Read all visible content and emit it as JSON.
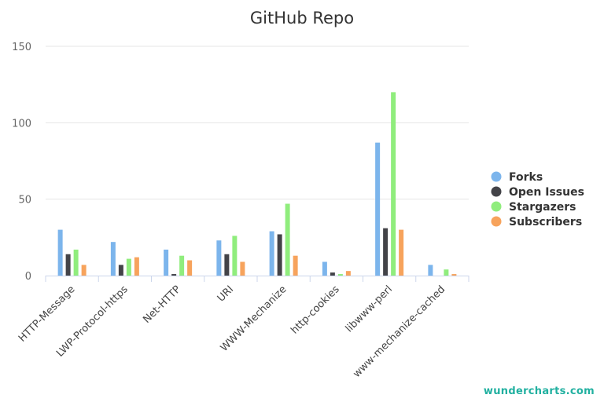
{
  "chart_data": {
    "type": "bar",
    "title": "GitHub Repo",
    "categories": [
      "HTTP-Message",
      "LWP-Protocol-https",
      "Net-HTTP",
      "URI",
      "WWW-Mechanize",
      "http-cookies",
      "libwww-perl",
      "www-mechanize-cached"
    ],
    "series": [
      {
        "name": "Forks",
        "color": "#7cb5ec",
        "values": [
          30,
          22,
          17,
          23,
          29,
          9,
          87,
          7
        ]
      },
      {
        "name": "Open Issues",
        "color": "#434348",
        "values": [
          14,
          7,
          1,
          14,
          27,
          2,
          31,
          0
        ]
      },
      {
        "name": "Stargazers",
        "color": "#90ed7d",
        "values": [
          17,
          11,
          13,
          26,
          47,
          1,
          120,
          4
        ]
      },
      {
        "name": "Subscribers",
        "color": "#f7a35c",
        "values": [
          7,
          12,
          10,
          9,
          13,
          3,
          30,
          1
        ]
      }
    ],
    "ylim": [
      0,
      150
    ],
    "yticks": [
      "0",
      "50",
      "100",
      "150"
    ],
    "grid": true,
    "legend": "right"
  },
  "brand": "wundercharts.com"
}
